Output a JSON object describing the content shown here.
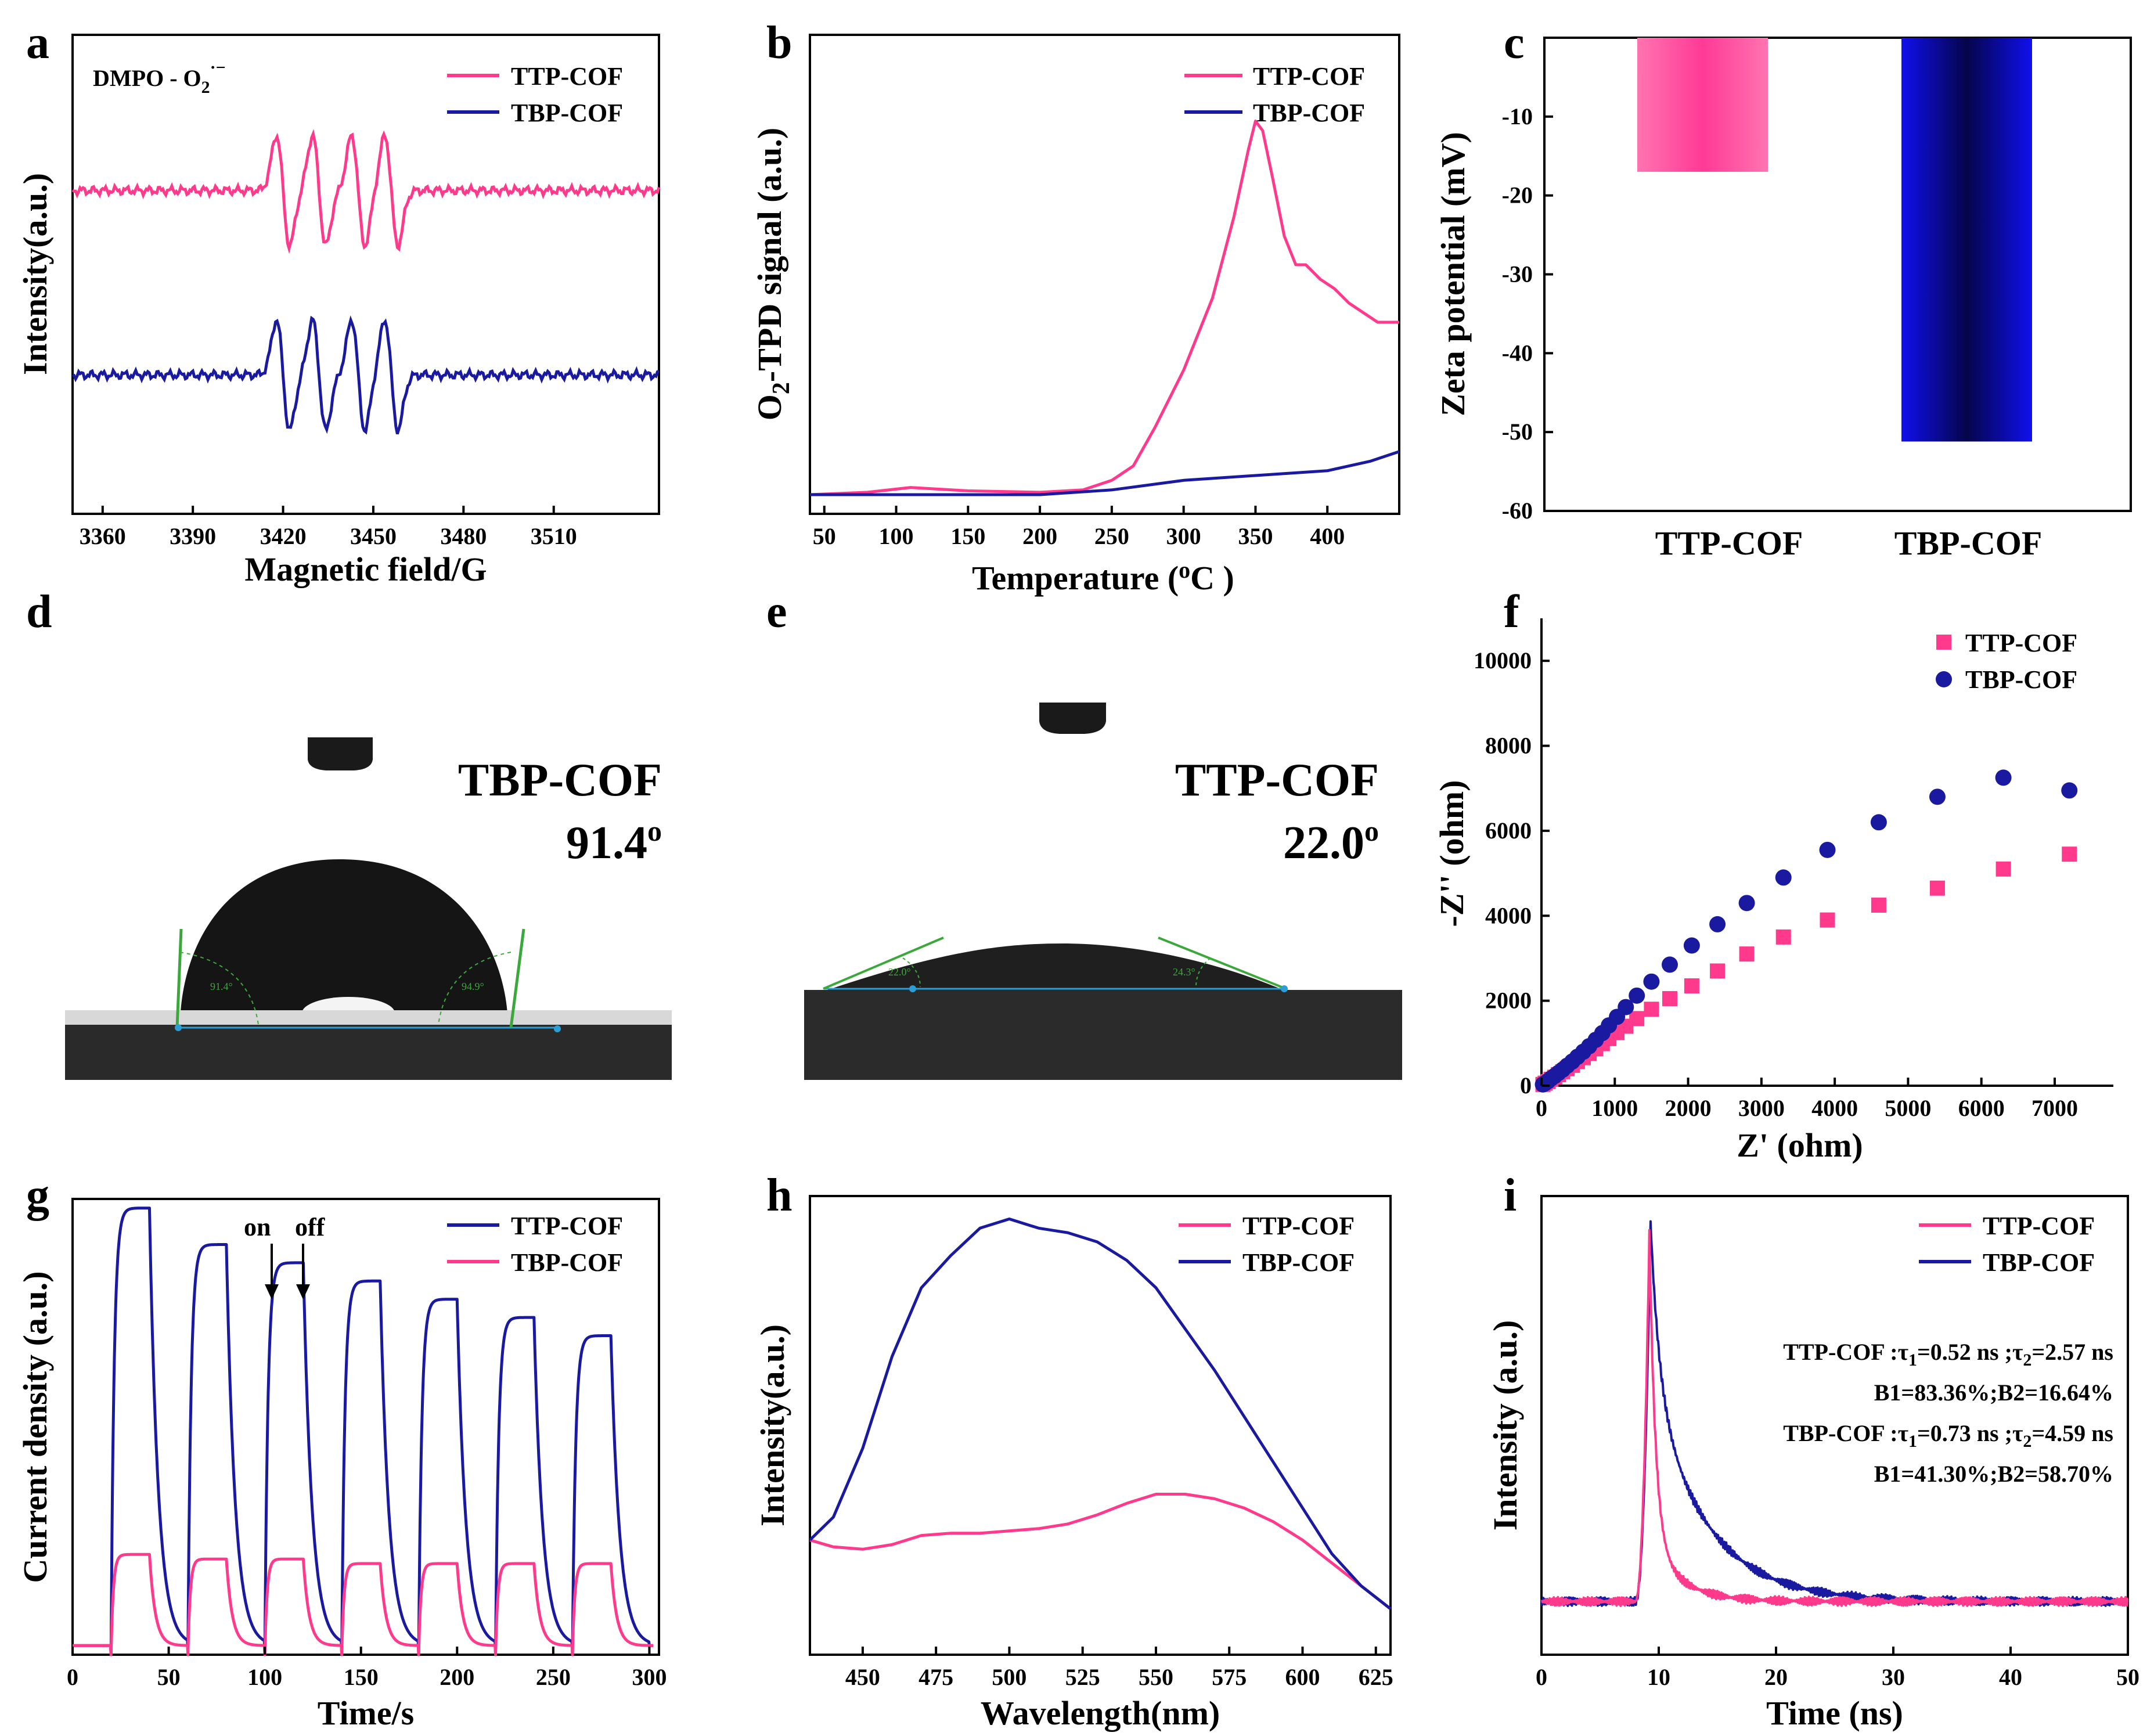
{
  "colors": {
    "ttp": "#ff3a8c",
    "tbp": "#1a1aa0",
    "axis": "#000000",
    "contact_line": "#3aa83a",
    "baseline": "#2a9fd6"
  },
  "chart_data": [
    {
      "panel": "a",
      "type": "line",
      "xlabel": "Magnetic field/G",
      "ylabel": "Intensity(a.u.)",
      "xlim": [
        3350,
        3545
      ],
      "ylim": [
        -1.0,
        1.0
      ],
      "xticks": [
        3360,
        3390,
        3420,
        3450,
        3480,
        3510
      ],
      "annotation_main": "DMPO - O",
      "annotation_sub": "2",
      "annotation_sup": "·−",
      "series": [
        {
          "name": "TTP-COF",
          "color": "ttp",
          "offset": 0.35,
          "peaks": [
            3420,
            3432,
            3445,
            3456
          ]
        },
        {
          "name": "TBP-COF",
          "color": "tbp",
          "offset": -0.42,
          "peaks": [
            3420,
            3432,
            3445,
            3456
          ]
        }
      ]
    },
    {
      "panel": "b",
      "type": "line",
      "xlabel": "Temperature (",
      "xlabel_sup": "o",
      "xlabel_end": "C )",
      "ylabel_pre": "O",
      "ylabel_sub": "2",
      "ylabel_post": "-TPD signal (a.u.)",
      "xlim": [
        40,
        450
      ],
      "ylim": [
        0,
        1
      ],
      "xticks": [
        50,
        100,
        150,
        200,
        250,
        300,
        350,
        400
      ],
      "series": [
        {
          "name": "TTP-COF",
          "color": "ttp",
          "x": [
            40,
            80,
            110,
            150,
            200,
            230,
            250,
            265,
            280,
            300,
            320,
            335,
            345,
            350,
            355,
            362,
            370,
            378,
            385,
            395,
            405,
            415,
            425,
            435,
            445,
            450
          ],
          "y": [
            0.04,
            0.045,
            0.055,
            0.048,
            0.045,
            0.05,
            0.07,
            0.1,
            0.18,
            0.3,
            0.45,
            0.62,
            0.76,
            0.82,
            0.8,
            0.7,
            0.58,
            0.52,
            0.52,
            0.49,
            0.47,
            0.44,
            0.42,
            0.4,
            0.4,
            0.4
          ]
        },
        {
          "name": "TBP-COF",
          "color": "tbp",
          "x": [
            40,
            100,
            200,
            250,
            300,
            350,
            400,
            430,
            450
          ],
          "y": [
            0.04,
            0.04,
            0.04,
            0.05,
            0.07,
            0.08,
            0.09,
            0.11,
            0.13
          ]
        }
      ]
    },
    {
      "panel": "c",
      "type": "bar",
      "ylabel": "Zeta potential (mV)",
      "categories": [
        "TTP-COF",
        "TBP-COF"
      ],
      "values": [
        -17.0,
        -51.2
      ],
      "ylim": [
        -60,
        0
      ],
      "yticks": [
        -10,
        -20,
        -30,
        -40,
        -50,
        -60
      ]
    },
    {
      "panel": "f",
      "type": "scatter",
      "xlabel": "Z' (ohm)",
      "ylabel": "-Z'' (ohm)",
      "xlim": [
        0,
        7800
      ],
      "ylim": [
        0,
        11000
      ],
      "xticks": [
        0,
        1000,
        2000,
        3000,
        4000,
        5000,
        6000,
        7000
      ],
      "yticks": [
        0,
        2000,
        4000,
        6000,
        8000,
        10000
      ],
      "series": [
        {
          "name": "TTP-COF",
          "marker": "square",
          "color": "ttp",
          "x": [
            20,
            50,
            90,
            130,
            180,
            230,
            290,
            350,
            420,
            490,
            570,
            650,
            740,
            830,
            920,
            1030,
            1150,
            1300,
            1500,
            1750,
            2050,
            2400,
            2800,
            3300,
            3900,
            4600,
            5400,
            6300,
            7200
          ],
          "y": [
            30,
            60,
            100,
            150,
            200,
            260,
            330,
            400,
            480,
            570,
            660,
            760,
            870,
            990,
            1110,
            1250,
            1400,
            1580,
            1800,
            2050,
            2350,
            2700,
            3100,
            3500,
            3900,
            4250,
            4650,
            5100,
            5450
          ]
        },
        {
          "name": "TBP-COF",
          "marker": "circle",
          "color": "tbp",
          "x": [
            20,
            50,
            90,
            130,
            180,
            230,
            290,
            350,
            420,
            490,
            570,
            650,
            740,
            830,
            920,
            1030,
            1150,
            1300,
            1500,
            1750,
            2050,
            2400,
            2800,
            3300,
            3900,
            4600,
            5400,
            6300,
            7200
          ],
          "y": [
            30,
            60,
            110,
            170,
            230,
            300,
            380,
            470,
            570,
            680,
            800,
            930,
            1080,
            1240,
            1420,
            1620,
            1850,
            2120,
            2450,
            2850,
            3300,
            3800,
            4300,
            4900,
            5550,
            6200,
            6800,
            7250,
            6950
          ]
        }
      ]
    },
    {
      "panel": "g",
      "type": "line",
      "xlabel": "Time/s",
      "ylabel": "Current density (a.u.)",
      "xlim": [
        0,
        305
      ],
      "ylim": [
        0,
        1
      ],
      "xticks": [
        0,
        50,
        100,
        150,
        200,
        250,
        300
      ],
      "on_label": "on",
      "off_label": "off",
      "on_times": [
        20,
        60,
        100,
        140,
        180,
        220,
        260
      ],
      "light_duration": 20,
      "series": [
        {
          "name": "TTP-COF",
          "color": "tbp",
          "peaks": [
            0.98,
            0.9,
            0.86,
            0.82,
            0.78,
            0.74,
            0.7
          ]
        },
        {
          "name": "TBP-COF",
          "color": "ttp",
          "peaks": [
            0.22,
            0.21,
            0.21,
            0.2,
            0.2,
            0.2,
            0.2
          ]
        }
      ]
    },
    {
      "panel": "h",
      "type": "line",
      "xlabel": "Wavelength(nm)",
      "ylabel": "Intensity(a.u.)",
      "xlim": [
        432,
        630
      ],
      "ylim": [
        0,
        1
      ],
      "xticks": [
        450,
        475,
        500,
        525,
        550,
        575,
        600,
        625
      ],
      "series": [
        {
          "name": "TTP-COF",
          "color": "ttp",
          "x": [
            432,
            440,
            450,
            460,
            470,
            480,
            490,
            500,
            510,
            520,
            530,
            540,
            550,
            560,
            570,
            580,
            590,
            600,
            610,
            620,
            630
          ],
          "y": [
            0.25,
            0.235,
            0.23,
            0.24,
            0.26,
            0.265,
            0.265,
            0.27,
            0.275,
            0.285,
            0.305,
            0.33,
            0.35,
            0.35,
            0.34,
            0.32,
            0.29,
            0.25,
            0.2,
            0.15,
            0.1
          ]
        },
        {
          "name": "TBP-COF",
          "color": "tbp",
          "x": [
            432,
            440,
            450,
            460,
            470,
            480,
            490,
            500,
            510,
            520,
            530,
            540,
            550,
            560,
            570,
            580,
            590,
            600,
            610,
            620,
            630
          ],
          "y": [
            0.25,
            0.3,
            0.45,
            0.65,
            0.8,
            0.87,
            0.93,
            0.95,
            0.93,
            0.92,
            0.9,
            0.86,
            0.8,
            0.71,
            0.62,
            0.52,
            0.42,
            0.32,
            0.22,
            0.15,
            0.1
          ]
        }
      ]
    },
    {
      "panel": "i",
      "type": "line",
      "xlabel": "Time (ns)",
      "ylabel": "Intensity (a.u.)",
      "xlim": [
        0,
        50
      ],
      "ylim": [
        0,
        1
      ],
      "xticks": [
        0,
        10,
        20,
        30,
        40,
        50
      ],
      "annotations": [
        {
          "pre": "TTP-COF :τ",
          "s1": "1",
          "mid": "=0.52 ns ;τ",
          "s2": "2",
          "post": "=2.57 ns"
        },
        {
          "text": "B1=83.36%;B2=16.64%"
        },
        {
          "pre": "TBP-COF :τ",
          "s1": "1",
          "mid": "=0.73 ns ;τ",
          "s2": "2",
          "post": "=4.59 ns"
        },
        {
          "text": "B1=41.30%;B2=58.70%"
        }
      ],
      "series": [
        {
          "name": "TTP-COF",
          "color": "ttp",
          "t0": 8,
          "peak_t": 9.2,
          "peak": 0.97,
          "tau1": 0.52,
          "tau2": 2.57,
          "b1": 0.8336,
          "b2": 0.1664
        },
        {
          "name": "TBP-COF",
          "color": "tbp",
          "t0": 8,
          "peak_t": 9.3,
          "peak": 1.0,
          "tau1": 0.73,
          "tau2": 4.59,
          "b1": 0.413,
          "b2": 0.587
        }
      ]
    }
  ],
  "contact_angle": {
    "d": {
      "panel": "d",
      "title": "TBP-COF",
      "angle_value": "91.4",
      "angle_sup": "o",
      "left_label": "91.4°",
      "right_label": "94.9°"
    },
    "e": {
      "panel": "e",
      "title": "TTP-COF",
      "angle_value": "22.0",
      "angle_sup": "o",
      "left_label": "22.0°",
      "right_label": "24.3°"
    }
  }
}
